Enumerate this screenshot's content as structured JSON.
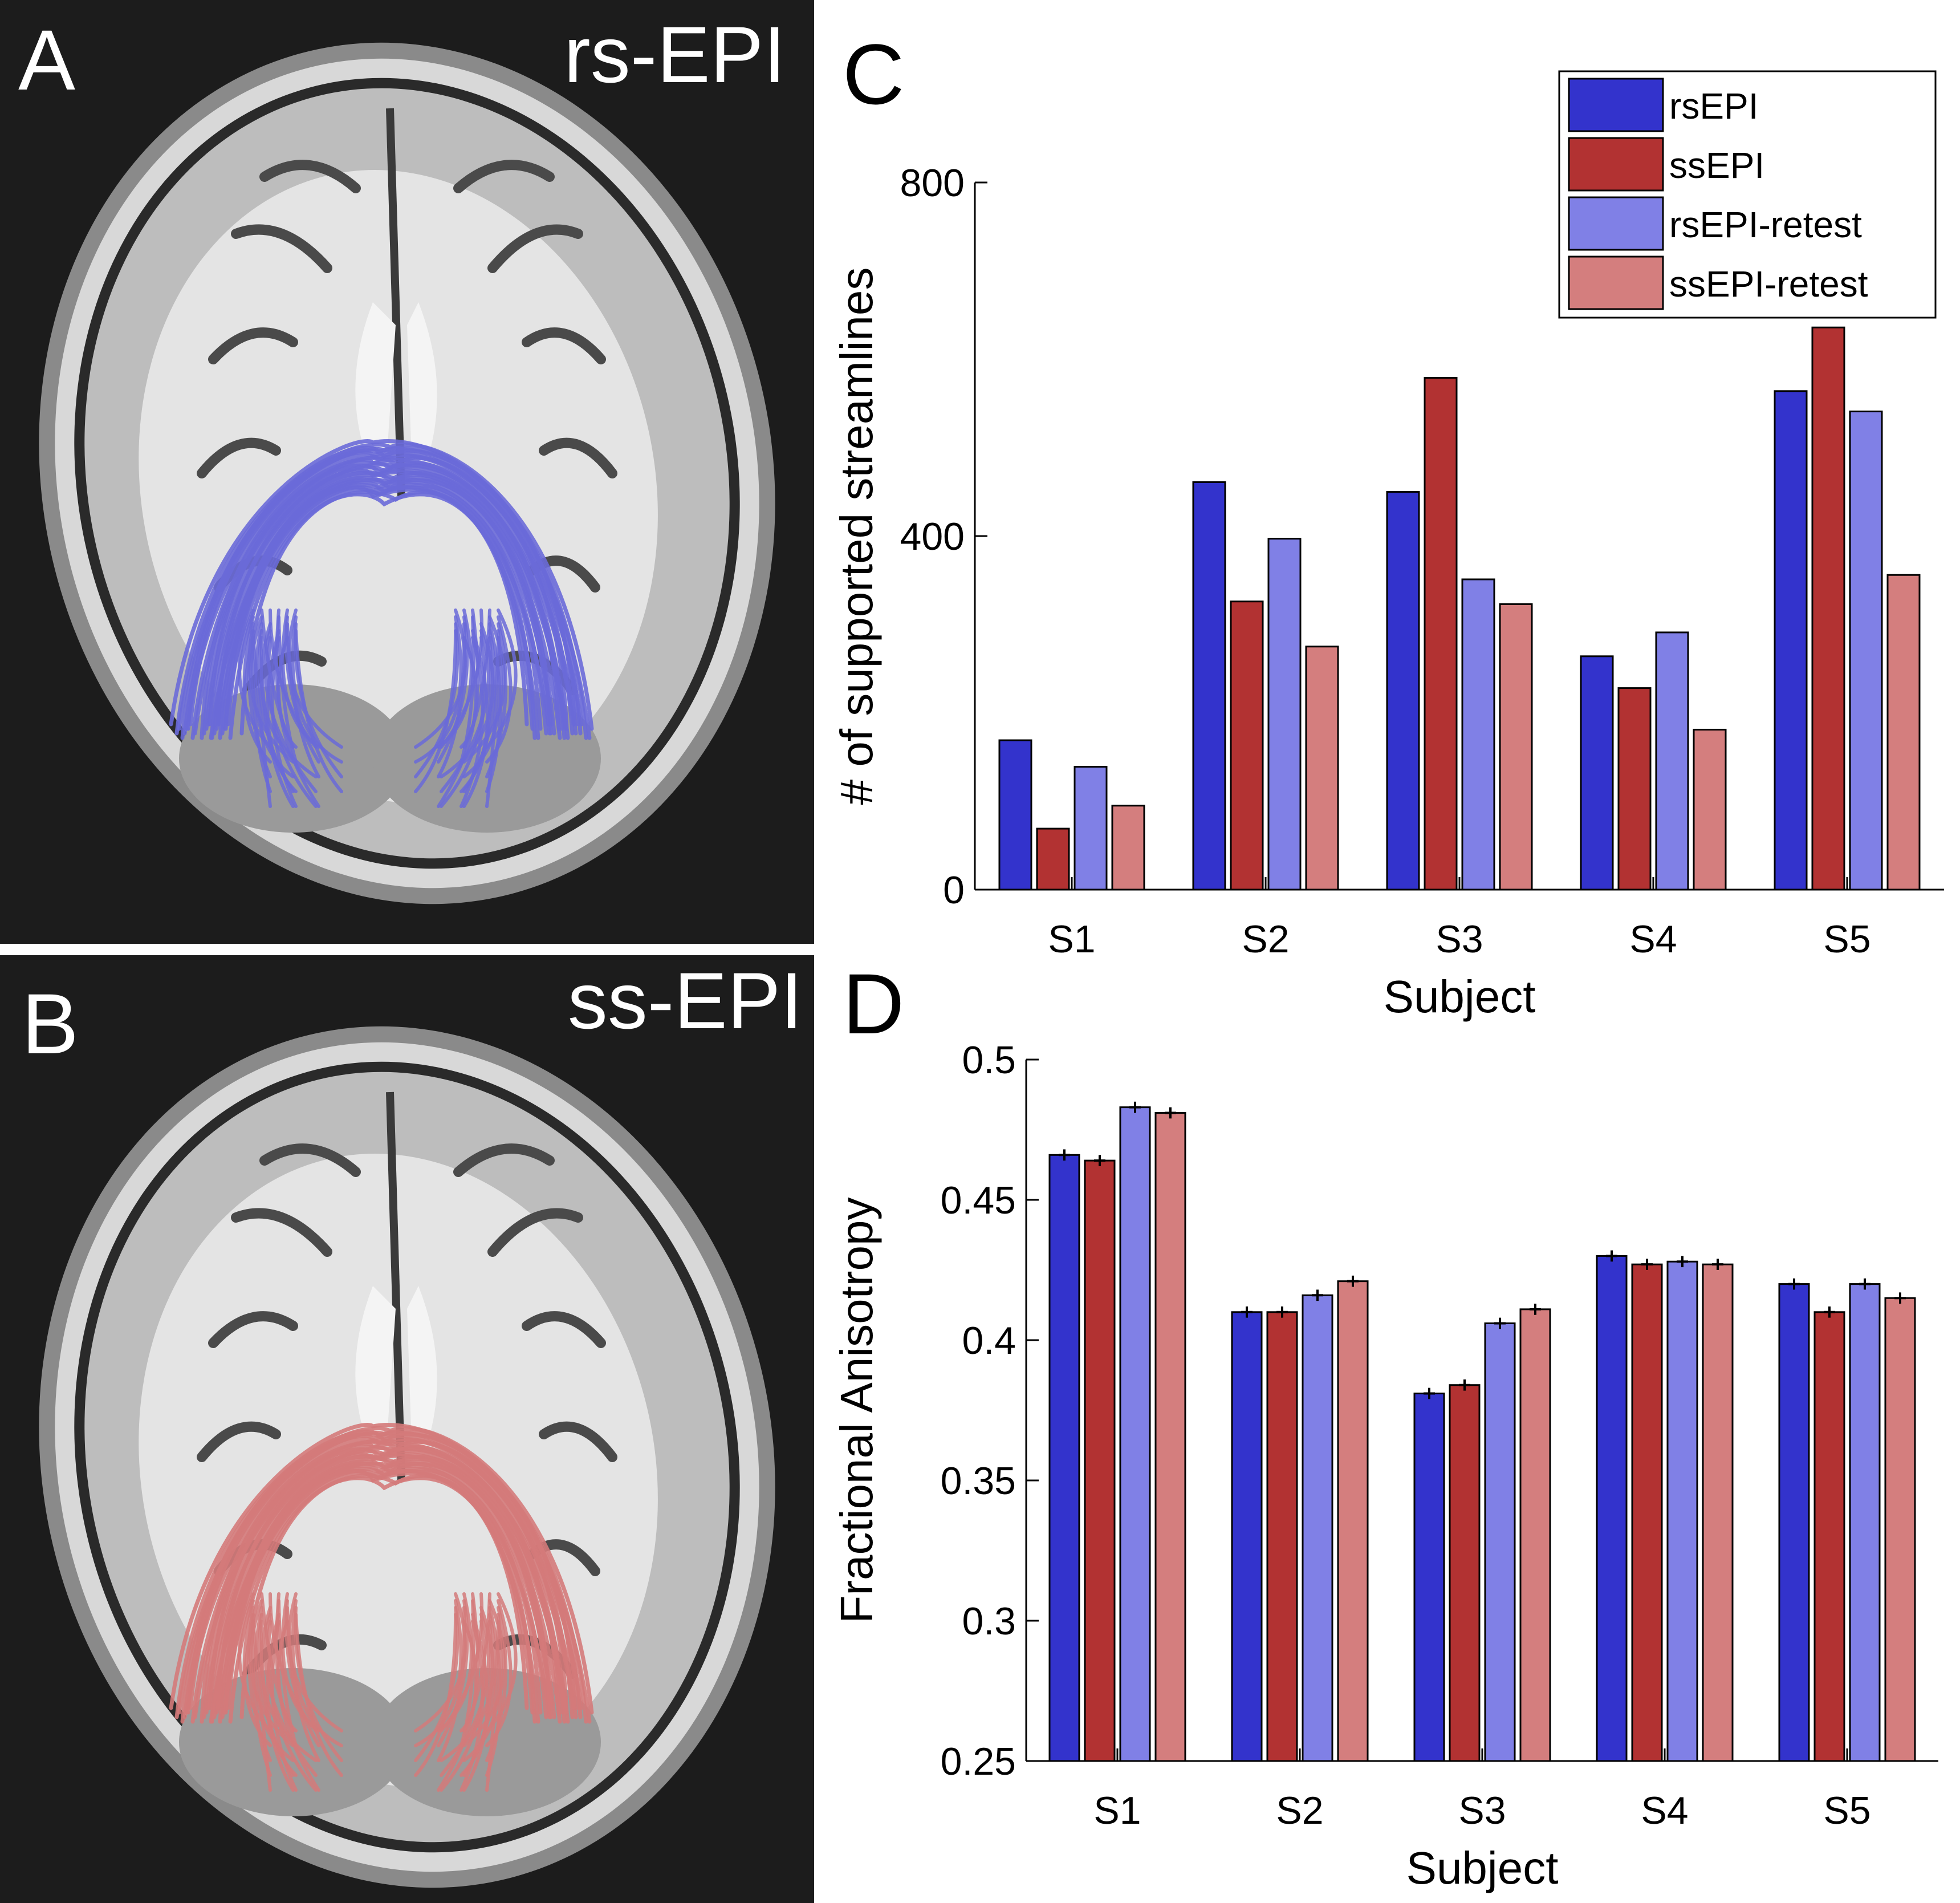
{
  "panels": {
    "a": {
      "letter": "A",
      "caption": "rs-EPI",
      "tract_color": "#6a6ad8"
    },
    "b": {
      "letter": "B",
      "caption": "ss-EPI",
      "tract_color": "#d47a7a"
    },
    "c": {
      "letter": "C"
    },
    "d": {
      "letter": "D"
    }
  },
  "legend": {
    "entries": [
      {
        "label": "rsEPI",
        "color": "#3333cc"
      },
      {
        "label": "ssEPI",
        "color": "#b23232"
      },
      {
        "label": "rsEPI-retest",
        "color": "#8080e6"
      },
      {
        "label": "ssEPI-retest",
        "color": "#d47e7e"
      }
    ]
  },
  "chart_data": [
    {
      "id": "C",
      "type": "bar",
      "title": "",
      "xlabel": "Subject",
      "ylabel": "# of supported streamlines",
      "ylim": [
        0,
        800
      ],
      "yticks": [
        0,
        400,
        800
      ],
      "categories": [
        "S1",
        "S2",
        "S3",
        "S4",
        "S5"
      ],
      "series": [
        {
          "name": "rsEPI",
          "values": [
            169,
            461,
            450,
            264,
            564
          ]
        },
        {
          "name": "ssEPI",
          "values": [
            69,
            326,
            579,
            228,
            636
          ]
        },
        {
          "name": "rsEPI-retest",
          "values": [
            139,
            397,
            351,
            291,
            541
          ]
        },
        {
          "name": "ssEPI-retest",
          "values": [
            95,
            275,
            323,
            181,
            356
          ]
        }
      ],
      "legend": "top-right"
    },
    {
      "id": "D",
      "type": "bar",
      "title": "",
      "xlabel": "Subject",
      "ylabel": "Fractional Anisotropy",
      "ylim": [
        0.25,
        0.5
      ],
      "yticks": [
        0.25,
        0.3,
        0.35,
        0.4,
        0.45,
        0.5
      ],
      "ytick_labels": [
        "0.25",
        "0.3",
        "0.35",
        "0.4",
        "0.45",
        "0.5"
      ],
      "categories": [
        "S1",
        "S2",
        "S3",
        "S4",
        "S5"
      ],
      "series": [
        {
          "name": "rsEPI",
          "values": [
            0.466,
            0.41,
            0.381,
            0.43,
            0.42
          ],
          "errors": [
            0.002,
            0.002,
            0.002,
            0.002,
            0.002
          ]
        },
        {
          "name": "ssEPI",
          "values": [
            0.464,
            0.41,
            0.384,
            0.427,
            0.41
          ],
          "errors": [
            0.002,
            0.002,
            0.002,
            0.002,
            0.002
          ]
        },
        {
          "name": "rsEPI-retest",
          "values": [
            0.483,
            0.416,
            0.406,
            0.428,
            0.42
          ],
          "errors": [
            0.002,
            0.002,
            0.002,
            0.002,
            0.002
          ]
        },
        {
          "name": "ssEPI-retest",
          "values": [
            0.481,
            0.421,
            0.411,
            0.427,
            0.415
          ],
          "errors": [
            0.002,
            0.002,
            0.002,
            0.002,
            0.002
          ]
        }
      ],
      "legend": "none"
    }
  ]
}
